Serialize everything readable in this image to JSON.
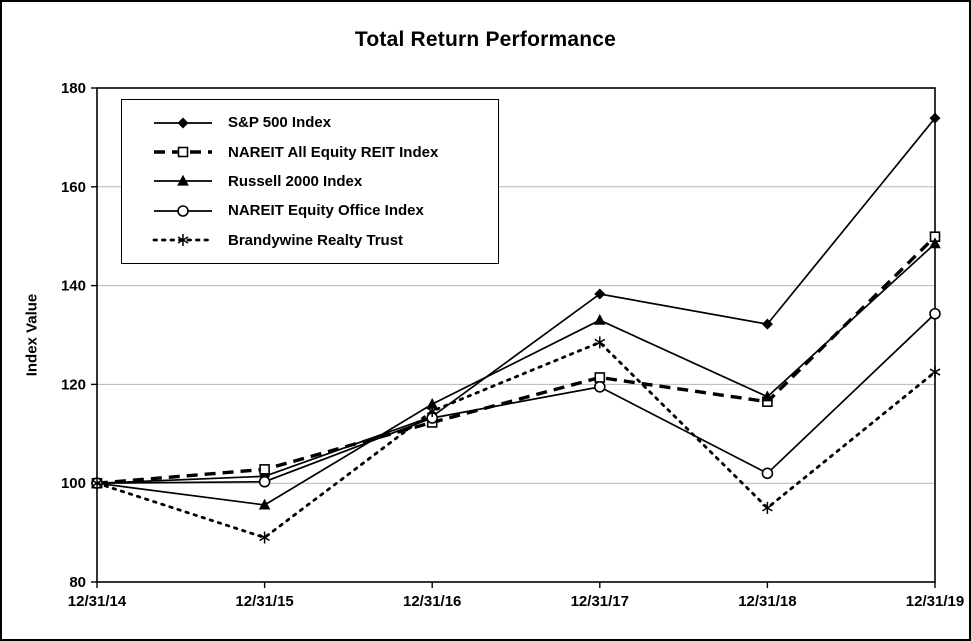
{
  "chart_data": {
    "type": "line",
    "title": "Total Return Performance",
    "xlabel": "",
    "ylabel": "Index Value",
    "ylim": [
      80,
      180
    ],
    "ytick_interval": 20,
    "grid": true,
    "legend_position": "upper-left",
    "categories": [
      "12/31/14",
      "12/31/15",
      "12/31/16",
      "12/31/17",
      "12/31/18",
      "12/31/19"
    ],
    "series": [
      {
        "name": "S&P 500 Index",
        "marker": "diamond",
        "line": "solid",
        "values": [
          100,
          101.4,
          113.5,
          138.3,
          132.2,
          173.9
        ]
      },
      {
        "name": "NAREIT All Equity REIT Index",
        "marker": "square-open",
        "line": "dashed",
        "values": [
          100,
          102.8,
          112.3,
          121.4,
          116.5,
          149.9
        ]
      },
      {
        "name": "Russell 2000 Index",
        "marker": "triangle",
        "line": "solid",
        "values": [
          100,
          95.6,
          116.0,
          133.0,
          117.5,
          148.5
        ]
      },
      {
        "name": "NAREIT Equity Office Index",
        "marker": "circle-open",
        "line": "solid",
        "values": [
          100,
          100.3,
          113.2,
          119.5,
          102.0,
          134.3
        ]
      },
      {
        "name": "Brandywine Realty Trust",
        "marker": "asterisk",
        "line": "dotted",
        "values": [
          100,
          89.0,
          114.6,
          128.5,
          95.0,
          122.5
        ]
      }
    ]
  },
  "colors": {
    "line": "#000000",
    "grid": "#b6b6b6",
    "background": "#ffffff",
    "border": "#000000"
  }
}
